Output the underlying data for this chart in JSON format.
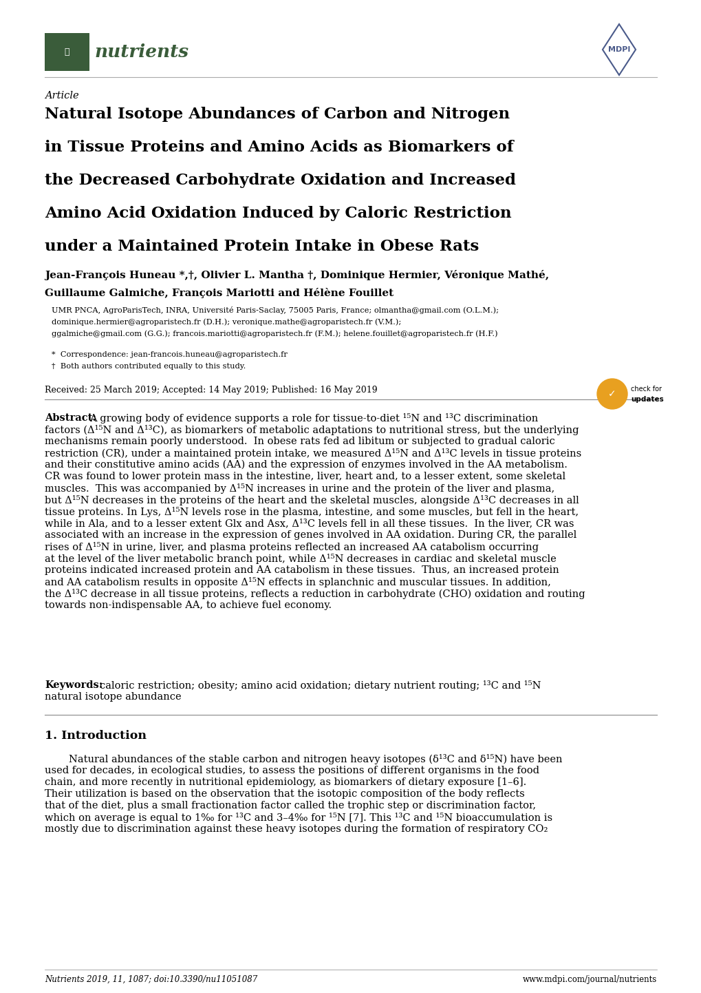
{
  "bg_color": "#ffffff",
  "text_color": "#000000",
  "page_width": 10.2,
  "page_height": 14.42,
  "nutrients_green": "#3a5c3a",
  "mdpi_blue": "#4a5a8a",
  "article_label": "Article",
  "title_line1": "Natural Isotope Abundances of Carbon and Nitrogen",
  "title_line2": "in Tissue Proteins and Amino Acids as Biomarkers of",
  "title_line3": "the Decreased Carbohydrate Oxidation and Increased",
  "title_line4": "Amino Acid Oxidation Induced by Caloric Restriction",
  "title_line5": "under a Maintained Protein Intake in Obese Rats",
  "authors": "Jean-François Huneau *,†, Olivier L. Mantha †, Dominique Hermier, Véronique Mathé,",
  "authors2": "Guillaume Galmiche, François Mariotti and Hélène Fouillet",
  "affil1": "UMR PNCA, AgroParisTech, INRA, Université Paris-Saclay, 75005 Paris, France; olmantha@gmail.com (O.L.M.);",
  "affil2": "dominique.hermier@agroparistech.fr (D.H.); veronique.mathe@agroparistech.fr (V.M.);",
  "affil3": "ggalmiche@gmail.com (G.G.); francois.mariotti@agroparistech.fr (F.M.); helene.fouillet@agroparistech.fr (H.F.)",
  "corresp": "*  Correspondence: jean-francois.huneau@agroparistech.fr",
  "contrib": "†  Both authors contributed equally to this study.",
  "received": "Received: 25 March 2019; Accepted: 14 May 2019; Published: 16 May 2019",
  "abs_line0": "Abstract: A growing body of evidence supports a role for tissue-to-diet ¹⁵N and ¹³C discrimination",
  "abs_line1": "factors (Δ¹⁵N and Δ¹³C), as biomarkers of metabolic adaptations to nutritional stress, but the underlying",
  "abs_line2": "mechanisms remain poorly understood.  In obese rats fed ad libitum or subjected to gradual caloric",
  "abs_line3": "restriction (CR), under a maintained protein intake, we measured Δ¹⁵N and Δ¹³C levels in tissue proteins",
  "abs_line4": "and their constitutive amino acids (AA) and the expression of enzymes involved in the AA metabolism.",
  "abs_line5": "CR was found to lower protein mass in the intestine, liver, heart and, to a lesser extent, some skeletal",
  "abs_line6": "muscles.  This was accompanied by Δ¹⁵N increases in urine and the protein of the liver and plasma,",
  "abs_line7": "but Δ¹⁵N decreases in the proteins of the heart and the skeletal muscles, alongside Δ¹³C decreases in all",
  "abs_line8": "tissue proteins. In Lys, Δ¹⁵N levels rose in the plasma, intestine, and some muscles, but fell in the heart,",
  "abs_line9": "while in Ala, and to a lesser extent Glx and Asx, Δ¹³C levels fell in all these tissues.  In the liver, CR was",
  "abs_line10": "associated with an increase in the expression of genes involved in AA oxidation. During CR, the parallel",
  "abs_line11": "rises of Δ¹⁵N in urine, liver, and plasma proteins reflected an increased AA catabolism occurring",
  "abs_line12": "at the level of the liver metabolic branch point, while Δ¹⁵N decreases in cardiac and skeletal muscle",
  "abs_line13": "proteins indicated increased protein and AA catabolism in these tissues.  Thus, an increased protein",
  "abs_line14": "and AA catabolism results in opposite Δ¹⁵N effects in splanchnic and muscular tissues. In addition,",
  "abs_line15": "the Δ¹³C decrease in all tissue proteins, reflects a reduction in carbohydrate (CHO) oxidation and routing",
  "abs_line16": "towards non-indispensable AA, to achieve fuel economy.",
  "kw_line0": "Keywords: caloric restriction; obesity; amino acid oxidation; dietary nutrient routing; ¹³C and ¹⁵N",
  "kw_line1": "natural isotope abundance",
  "section1_title": "1. Introduction",
  "intro_line0": "Natural abundances of the stable carbon and nitrogen heavy isotopes (δ¹³C and δ¹⁵N) have been",
  "intro_line1": "used for decades, in ecological studies, to assess the positions of different organisms in the food",
  "intro_line2": "chain, and more recently in nutritional epidemiology, as biomarkers of dietary exposure [1–6].",
  "intro_line3": "Their utilization is based on the observation that the isotopic composition of the body reflects",
  "intro_line4": "that of the diet, plus a small fractionation factor called the trophic step or discrimination factor,",
  "intro_line5": "which on average is equal to 1‰ for ¹³C and 3–4‰ for ¹⁵N [7]. This ¹³C and ¹⁵N bioaccumulation is",
  "intro_line6": "mostly due to discrimination against these heavy isotopes during the formation of respiratory CO₂",
  "footer_left": "Nutrients 2019, 11, 1087; doi:10.3390/nu11051087",
  "footer_right": "www.mdpi.com/journal/nutrients"
}
